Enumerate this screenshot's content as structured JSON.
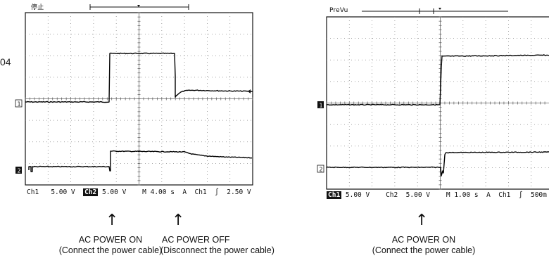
{
  "figure_number_fragment": "04",
  "scopes": [
    {
      "status": "停止",
      "readout_ch1": "Ch1   5.00 V",
      "readout_ch2_chip": "Ch2",
      "readout_rest": " 5.00 V    M 4.00 s  A  Ch1  ∫  2.50 V",
      "marker_ch1": "1",
      "marker_ch2": "2"
    },
    {
      "status": "PreVu",
      "readout_ch1_chip": "Ch1",
      "readout_rest": " 5.00 V    Ch2  5.00 V    M 1.00 s  A  Ch1  ∫  500m",
      "marker_ch1": "1",
      "marker_ch2": "2"
    }
  ],
  "annotations": [
    {
      "arrow": "↑",
      "line1": "AC POWER ON",
      "line2": "(Connect the power cable)"
    },
    {
      "arrow": "↑",
      "line1": "AC POWER OFF",
      "line2": "(Disconnect the power cable)"
    },
    {
      "arrow": "↑",
      "line1": "AC POWER ON",
      "line2": "(Connect the power cable)"
    }
  ]
}
